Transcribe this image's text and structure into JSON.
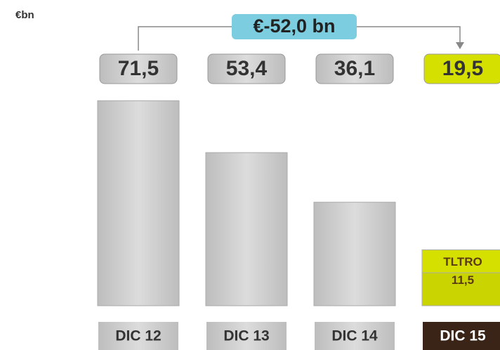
{
  "chart_data": {
    "type": "bar",
    "unit_label": "€bn",
    "annotation": "€-52,0 bn",
    "categories": [
      "DIC 12",
      "DIC 13",
      "DIC 14",
      "DIC 15"
    ],
    "values": [
      71.5,
      53.4,
      36.1,
      19.5
    ],
    "value_labels": [
      "71,5",
      "53,4",
      "36,1",
      "19,5"
    ],
    "colors": [
      "#d3d3d3",
      "#d3d3d3",
      "#d3d3d3",
      "#d6e000"
    ],
    "segment": {
      "name": "TLTRO",
      "category": 3,
      "value": 11.5,
      "label": "11,5",
      "color": "#c9d400"
    },
    "ylim": [
      0,
      75
    ]
  }
}
